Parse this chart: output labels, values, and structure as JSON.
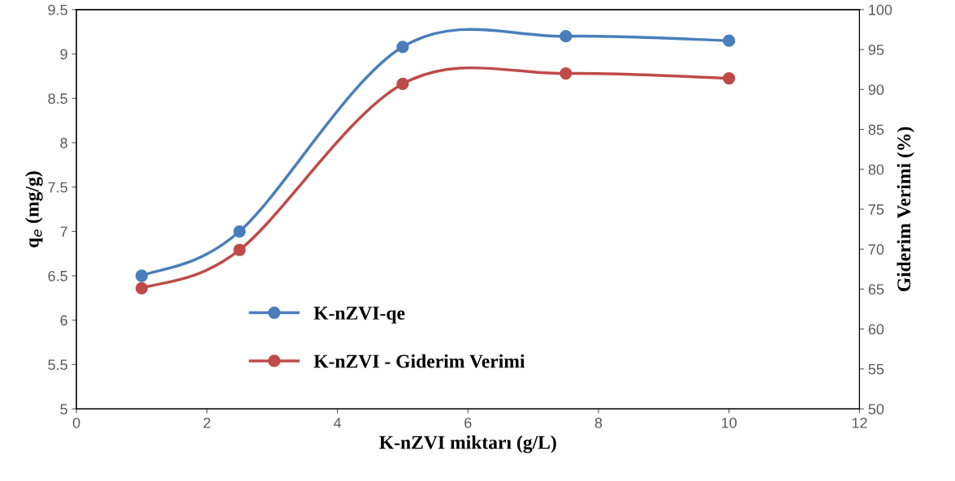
{
  "chart_data": {
    "type": "line",
    "xlabel": "K-nZVI miktarı (g/L)",
    "ylabel": "q$_{e}$ (mg/g)",
    "y2label": "Giderim Verimi (%)",
    "x": [
      1,
      2.5,
      5,
      7.5,
      10
    ],
    "series": [
      {
        "name": "K-nZVI-qe",
        "color": "#4a7ebb",
        "values": [
          6.5,
          7.0,
          9.08,
          9.2,
          9.15
        ]
      },
      {
        "name": "K-nZVI - Giderim Verimi",
        "color": "#be4b48",
        "values": [
          65.1,
          69.9,
          90.7,
          92.0,
          91.4
        ],
        "axis": "y2"
      }
    ],
    "xlim": [
      0,
      12
    ],
    "xticks": [
      0,
      2,
      4,
      6,
      8,
      10,
      12
    ],
    "ylim": [
      5,
      9.5
    ],
    "yticks": [
      5,
      {
        "value": 5.5,
        "label": "5.5"
      },
      6,
      {
        "value": 6.5,
        "label": "6.5"
      },
      7,
      {
        "value": 7.5,
        "label": "7.5"
      },
      8,
      {
        "value": 8.5,
        "label": "8.5"
      },
      9,
      {
        "value": 9.5,
        "label": "9.5"
      }
    ],
    "y2lim": [
      50,
      100
    ],
    "y2ticks": [
      50,
      55,
      60,
      65,
      70,
      75,
      80,
      85,
      90,
      95,
      100
    ],
    "grid": false,
    "legend": "bottom left",
    "marker": "circle",
    "line_style": "solid"
  }
}
